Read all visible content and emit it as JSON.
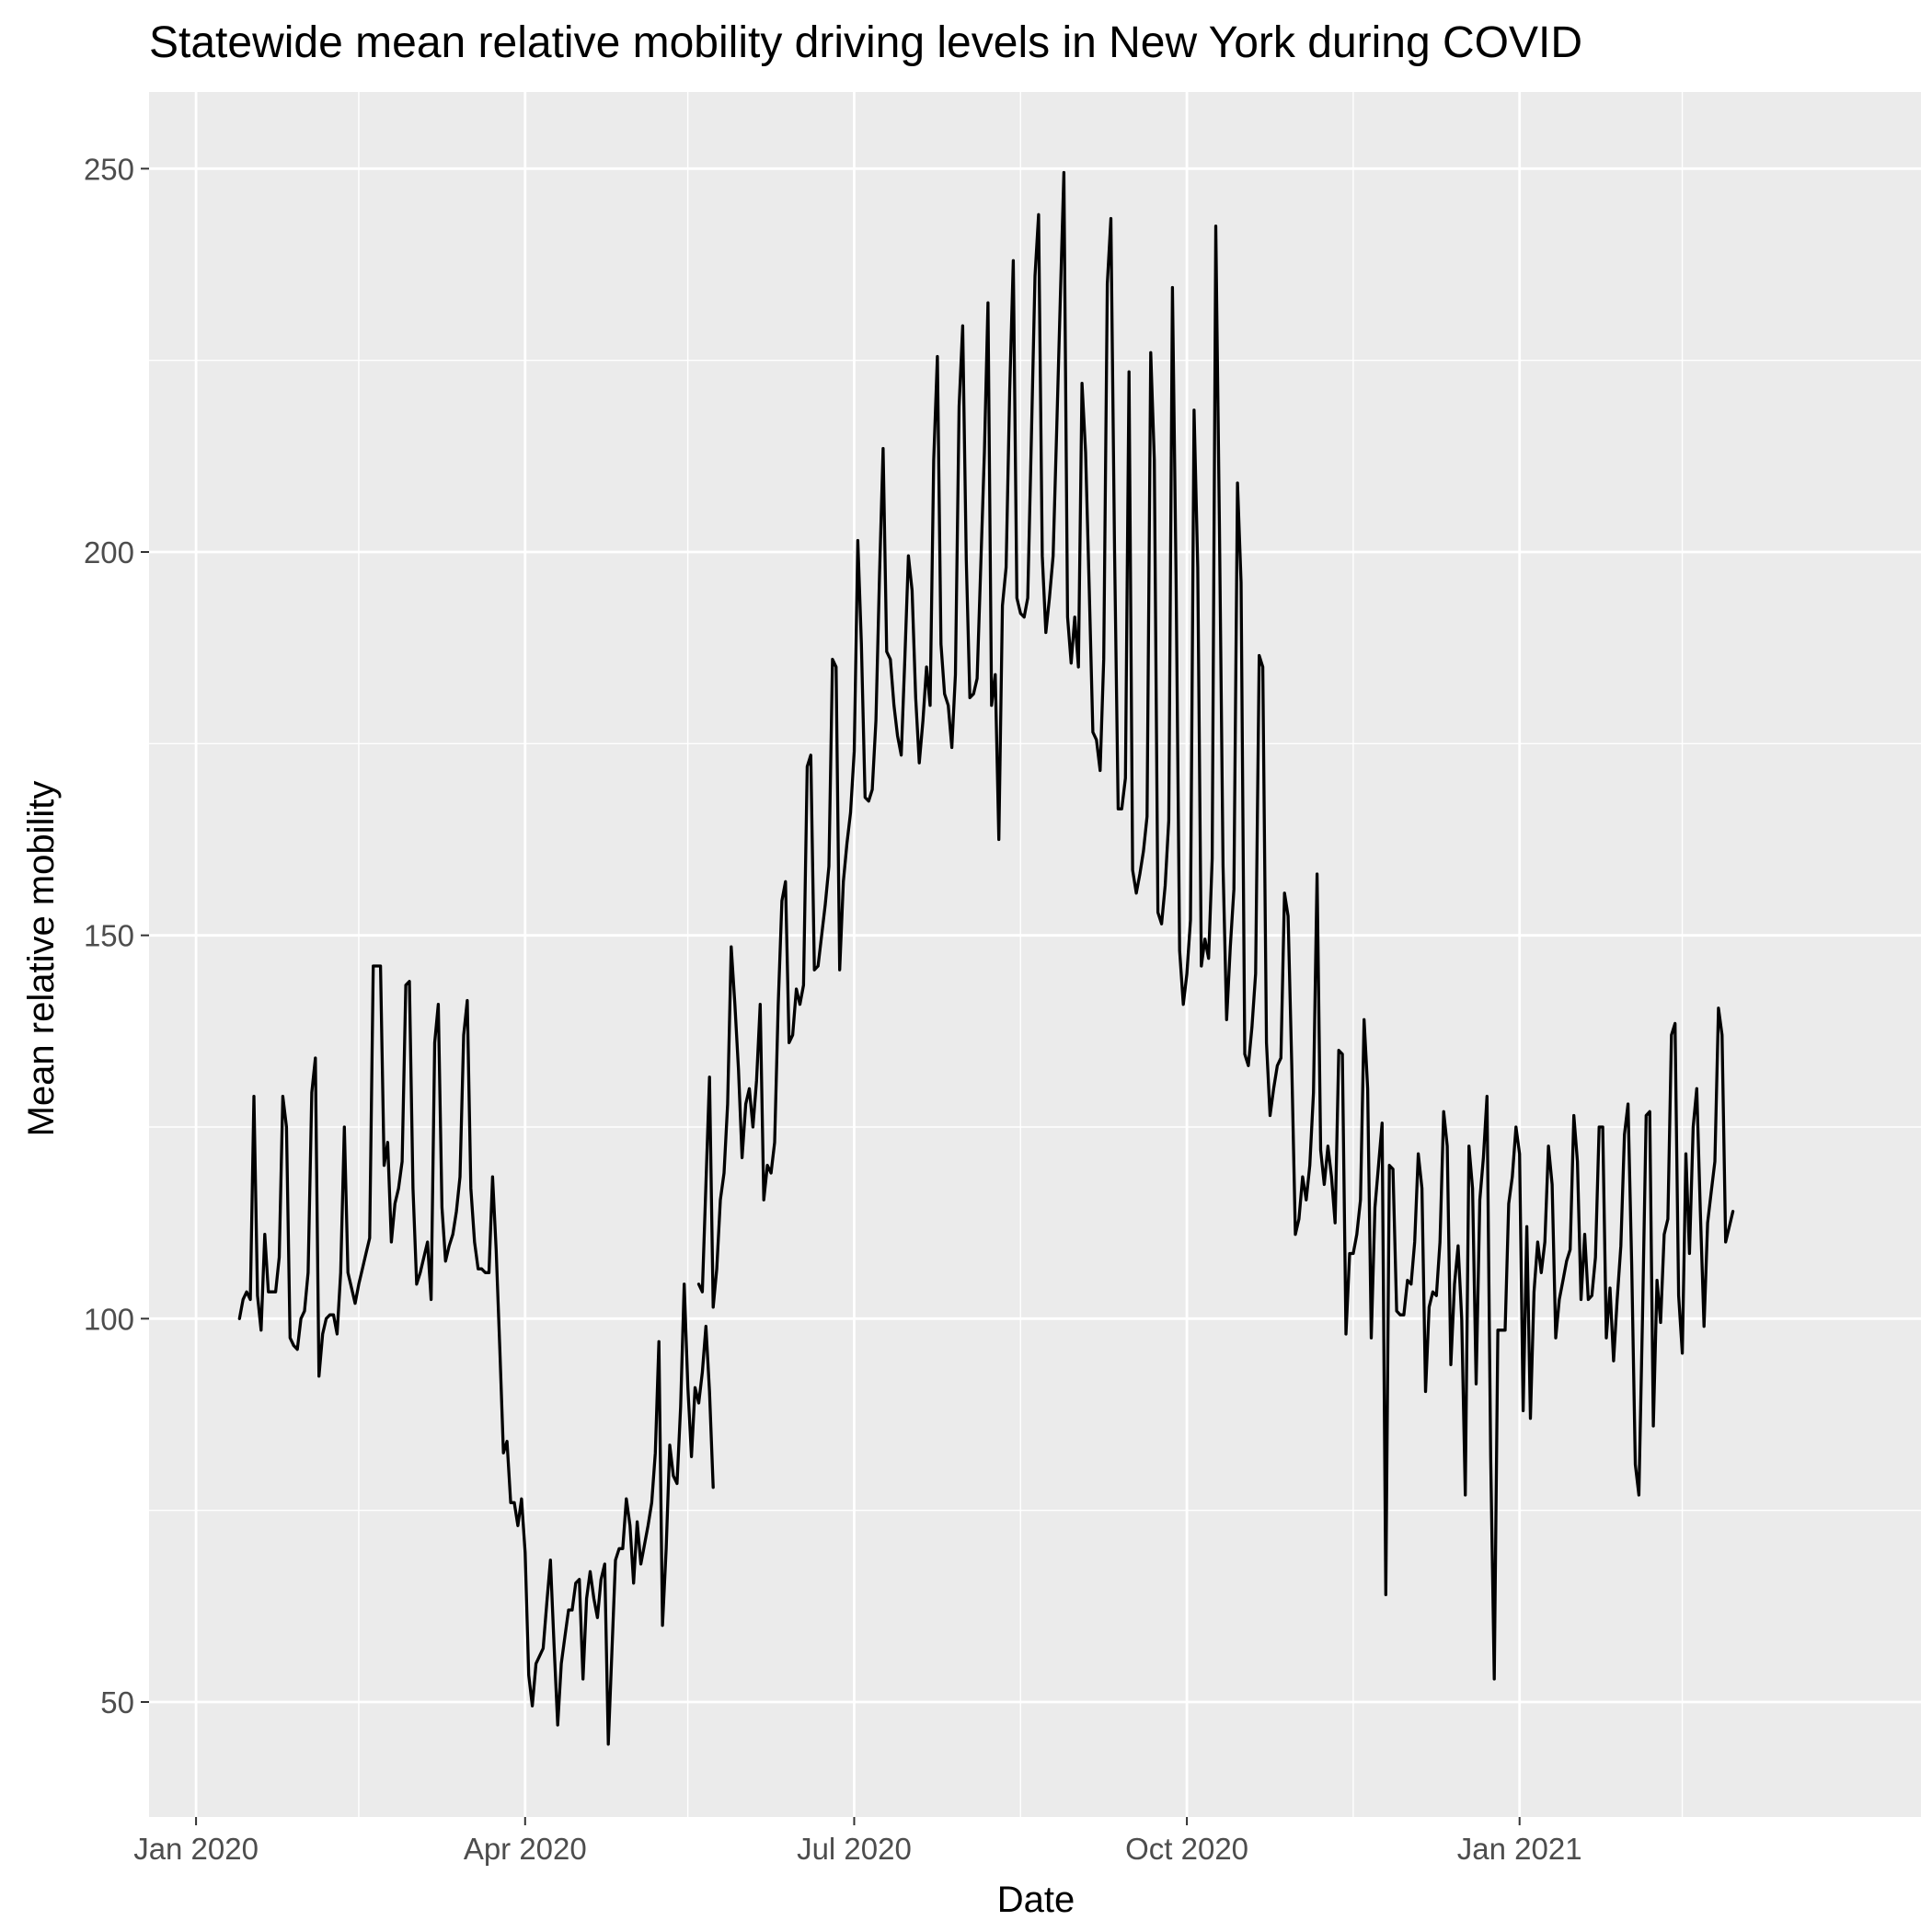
{
  "chart_data": {
    "type": "line",
    "title": "Statewide mean relative mobility driving levels in New York during COVID",
    "xlabel": "Date",
    "ylabel": "Mean relative mobility",
    "x_ticks": [
      "Jan 2020",
      "Apr 2020",
      "Jul 2020",
      "Oct 2020",
      "Jan 2021"
    ],
    "x_tick_dates": [
      "2020-01-01",
      "2020-04-01",
      "2020-07-01",
      "2020-10-01",
      "2021-01-01"
    ],
    "x_minor_dates": [
      "2020-02-15",
      "2020-05-16",
      "2020-08-16",
      "2020-11-16",
      "2021-02-15"
    ],
    "xlim": [
      "2019-12-19",
      "2021-04-22"
    ],
    "y_ticks": [
      50,
      100,
      150,
      200,
      250
    ],
    "ylim": [
      35,
      260
    ],
    "grid": true,
    "legend": "none",
    "colors": {
      "panel": "#ebebeb",
      "grid": "#ffffff",
      "line": "#000000",
      "tick_text": "#4d4d4d"
    },
    "series": [
      {
        "segments": [
          {
            "start": "2020-01-13",
            "values": [
              100,
              102.5,
              103.5,
              102.5,
              129,
              103,
              98.5,
              111,
              103.5,
              103.5,
              103.5,
              108,
              129,
              125,
              97.5,
              96.5,
              96,
              100,
              101,
              106,
              129.5,
              134,
              92.5,
              98,
              100,
              100.5,
              100.5,
              98,
              106,
              125,
              106,
              104,
              102,
              104.5,
              106.5,
              108.5,
              110.5,
              146,
              146,
              146,
              120,
              123,
              110,
              115,
              117,
              120.5,
              143.5,
              144,
              117,
              104.5,
              106,
              108,
              110,
              102.5,
              136,
              141,
              114.5,
              107.5,
              109.5,
              111,
              114,
              118.5,
              137,
              141.5,
              117,
              110,
              106.5,
              106.5,
              106,
              106,
              118.5,
              109,
              96,
              82.5,
              84,
              76,
              76,
              73,
              76.5,
              69.5,
              53.5,
              49.5,
              55,
              56,
              57,
              63,
              68.5,
              57.5,
              47,
              55,
              58.5,
              62,
              62,
              65.5,
              66,
              53,
              63.5,
              67,
              63.5,
              61,
              66,
              68,
              44.5,
              56.5,
              68.5,
              70,
              70,
              76.5,
              73,
              65.5,
              73.5,
              68,
              70.5,
              73,
              76,
              82.5,
              97,
              60,
              70,
              83.5,
              79.5,
              78.5,
              88.5,
              104.5,
              91,
              82,
              91,
              89,
              93,
              99,
              90.5,
              78
            ]
          },
          {
            "start": "2020-05-19",
            "values": [
              104.5,
              103.5,
              117.5,
              131.5,
              101.5,
              106.5,
              115.5,
              119,
              128,
              148.5,
              141,
              132.5,
              121,
              128,
              130,
              125,
              131,
              141,
              115.5,
              120,
              119,
              123,
              141,
              154.5,
              157,
              136,
              137,
              143,
              141,
              143.5,
              172,
              173.5,
              145.5,
              146,
              150,
              154,
              159,
              186,
              185,
              145.5,
              157,
              162,
              166,
              174,
              201.5,
              188,
              168,
              167.5,
              169,
              178,
              197,
              213.5,
              187,
              186,
              180,
              176,
              173.5,
              186,
              199.5,
              195,
              181,
              172.5,
              178,
              185,
              180,
              212,
              225.5,
              188,
              181.5,
              180,
              174.5,
              184,
              219,
              229.5,
              199,
              181,
              181.5,
              183.5,
              198,
              213,
              232.5,
              180,
              184,
              162.5,
              193,
              198,
              221,
              238,
              194,
              192,
              191.5,
              194,
              215,
              236,
              244,
              199.5,
              189.5,
              194,
              199.5,
              216,
              233,
              249.5,
              191.5,
              185.5,
              191.5,
              185,
              222,
              213,
              195,
              176.5,
              175.5,
              171.5,
              186,
              235,
              243.5,
              200,
              166.5,
              166.5,
              170.5,
              223.5,
              158.5,
              155.5,
              158,
              161,
              165.5,
              226,
              212,
              153,
              151.5,
              156.5,
              165,
              234.5,
              197,
              148,
              141,
              145,
              152,
              218.5,
              198,
              146,
              149.5,
              147,
              160,
              242.5,
              203,
              159,
              139,
              148.5,
              156,
              209,
              196,
              134.5,
              133,
              138,
              145,
              186.5,
              185,
              136,
              126.5,
              130,
              133,
              134,
              155.5,
              152.5,
              133,
              111,
              113,
              118.5,
              115.5,
              120,
              129.5,
              158,
              122,
              117.5,
              122.5,
              118.5,
              112.5,
              135,
              134.5,
              98,
              108.5,
              108.5,
              111,
              115.5,
              139,
              130,
              97.5,
              114.5,
              120,
              125.5,
              64,
              120,
              119.5,
              101,
              100.5,
              100.5,
              105,
              104.5,
              110,
              121.5,
              117,
              90.5,
              101.5,
              103.5,
              103,
              110,
              127,
              122.5,
              94,
              104.5,
              109.5,
              100,
              77,
              122.5,
              117,
              91.5,
              115.5,
              121,
              129,
              82,
              53,
              98.5,
              98.5,
              98.5,
              115,
              118.5,
              125,
              121.5,
              88,
              112,
              87,
              103.5,
              110,
              106,
              110,
              122.5,
              117.5,
              97.5,
              102.5,
              105,
              107.5,
              109,
              126.5,
              120.5,
              102.5,
              111,
              102.5,
              103,
              108,
              125,
              125,
              97.5,
              104,
              94.5,
              102.5,
              109.5,
              124,
              128,
              107,
              81,
              77,
              100,
              126.5,
              127,
              86,
              105,
              99.5,
              111,
              113,
              137,
              138.5,
              103,
              95.5,
              121.5,
              108.5,
              125,
              130,
              114,
              99,
              112.5,
              116.5,
              120.5,
              140.5,
              137,
              110,
              112,
              114
            ]
          }
        ]
      }
    ]
  }
}
